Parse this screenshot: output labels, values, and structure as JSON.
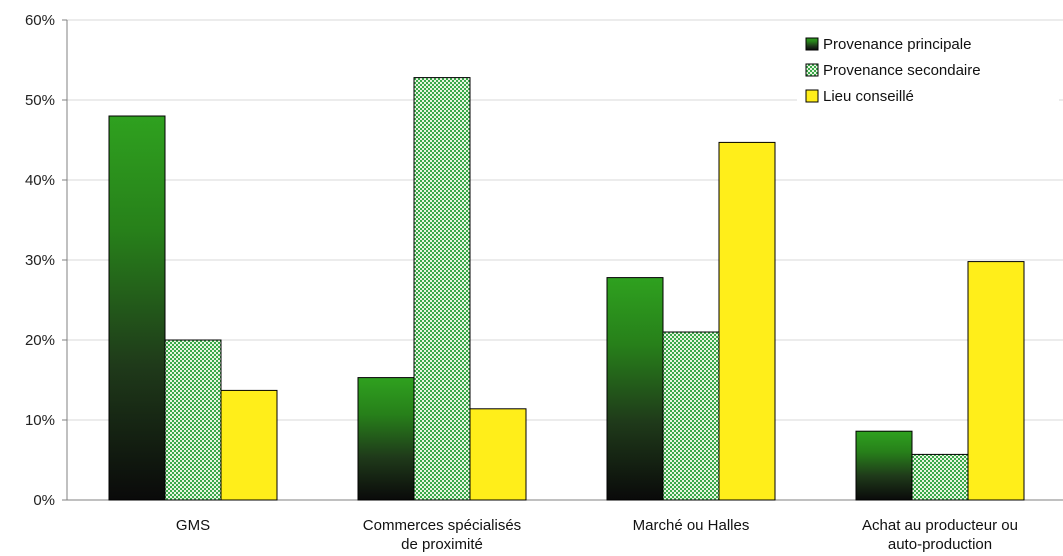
{
  "chart_data": {
    "type": "bar",
    "categories": [
      [
        "GMS"
      ],
      [
        "Commerces spécialisés",
        "de proximité"
      ],
      [
        "Marché ou Halles"
      ],
      [
        "Achat au producteur ou",
        "auto-production"
      ]
    ],
    "series": [
      {
        "name": "Provenance principale",
        "values": [
          48,
          15.3,
          27.8,
          8.6
        ],
        "color": "#2e9a1e",
        "pattern": "dark-gradient"
      },
      {
        "name": "Provenance secondaire",
        "values": [
          20,
          52.8,
          21,
          5.7
        ],
        "color": "#3aa84a",
        "pattern": "checkered"
      },
      {
        "name": "Lieu conseillé",
        "values": [
          13.7,
          11.4,
          44.7,
          29.8
        ],
        "color": "#ffee1a",
        "pattern": "solid"
      }
    ],
    "ylim": [
      0,
      60
    ],
    "yticks": [
      "0%",
      "10%",
      "20%",
      "30%",
      "40%",
      "50%",
      "60%"
    ],
    "ytick_values": [
      0,
      10,
      20,
      30,
      40,
      50,
      60
    ],
    "title": "",
    "xlabel": "",
    "ylabel": "",
    "legend_position": "top-right",
    "grid": true
  }
}
